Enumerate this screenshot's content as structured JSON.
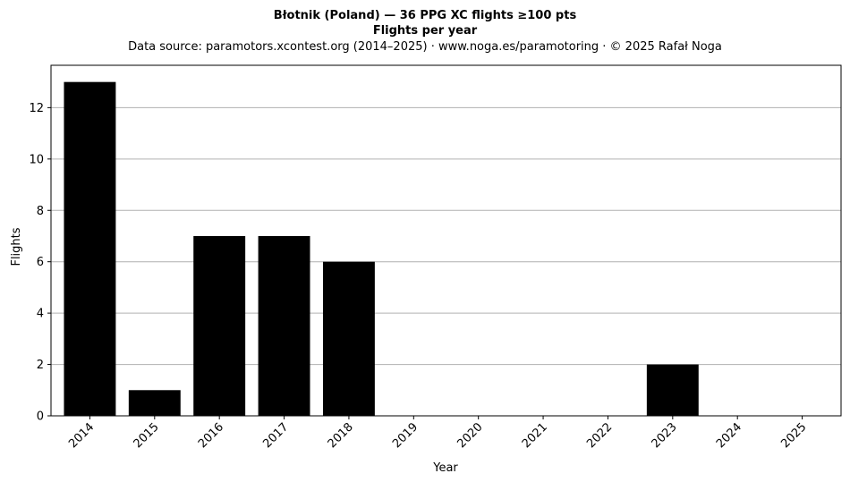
{
  "chart_data": {
    "type": "bar",
    "title": "Błotnik (Poland)  —  36 PPG XC flights ≥100 pts",
    "subtitle": "Flights per year",
    "source": "Data source: paramotors.xcontest.org (2014–2025)  ·  www.noga.es/paramotoring  ·  © 2025 Rafał Noga",
    "xlabel": "Year",
    "ylabel": "Flights",
    "categories": [
      "2014",
      "2015",
      "2016",
      "2017",
      "2018",
      "2019",
      "2020",
      "2021",
      "2022",
      "2023",
      "2024",
      "2025"
    ],
    "values": [
      13,
      1,
      7,
      7,
      6,
      0,
      0,
      0,
      0,
      2,
      0,
      0
    ],
    "ylim": [
      0,
      13.65
    ],
    "yticks": [
      0,
      2,
      4,
      6,
      8,
      10,
      12
    ],
    "bar_color": "#000000",
    "grid": "horizontal",
    "grid_color": "#b0b0b0"
  }
}
